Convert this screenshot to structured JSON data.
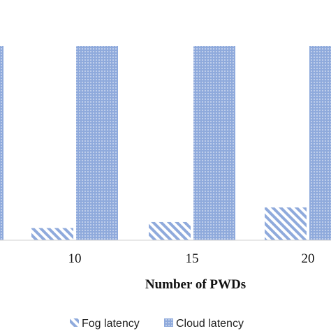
{
  "chart_data": {
    "type": "bar",
    "categories": [
      "10",
      "15",
      "20"
    ],
    "series": [
      {
        "name": "Fog latency",
        "values": [
          1.0,
          1.5,
          2.7
        ],
        "color": "#8FAADC",
        "pattern": "diagonal-hatch"
      },
      {
        "name": "Cloud latency",
        "values": [
          19.0,
          19.0,
          19.0
        ],
        "color": "#8FAADC",
        "pattern": "dotted"
      }
    ],
    "xlabel": "Number of PWDs",
    "ylabel": "",
    "title": "",
    "ylim": [
      0,
      16
    ],
    "y_clipped_at_top": true,
    "grid": false,
    "legend_position": "bottom"
  }
}
